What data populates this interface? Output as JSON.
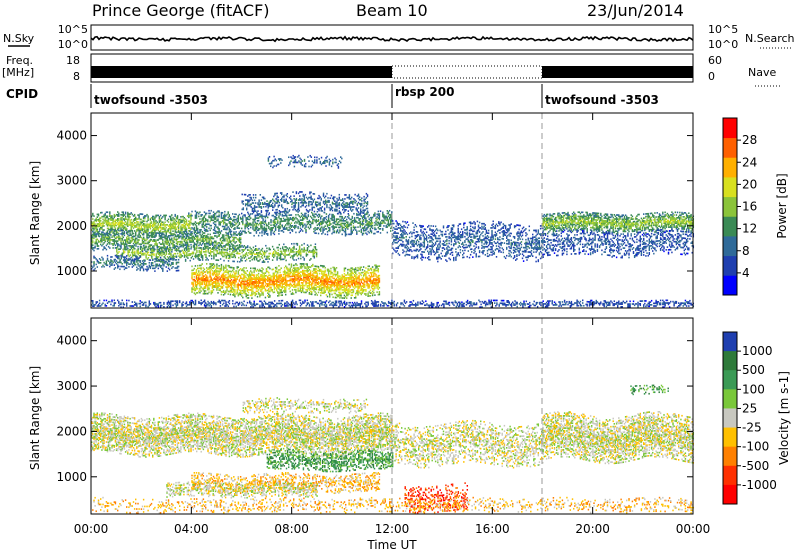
{
  "header": {
    "station": "Prince George (fitACF)",
    "beam": "Beam 10",
    "date": "23/Jun/2014"
  },
  "side_labels": {
    "nsky": "N.Sky",
    "freq": "Freq.",
    "freq_unit": "[MHz]",
    "cpid": "CPID",
    "nsearch": "N.Search",
    "nave": "Nave"
  },
  "top_panels": {
    "noise_ticks_left": [
      "10^5",
      "10^0"
    ],
    "noise_ticks_right": [
      "10^5",
      "10^0"
    ],
    "freq_ticks_left": [
      "18",
      "8"
    ],
    "freq_ticks_right": [
      "60",
      "0"
    ],
    "cpid_segments": [
      {
        "label": "twofsound -3503",
        "start_h": 0,
        "end_h": 12
      },
      {
        "label": "rbsp 200",
        "start_h": 12,
        "end_h": 18
      },
      {
        "label": "twofsound -3503",
        "start_h": 18,
        "end_h": 24
      }
    ]
  },
  "chart_data": [
    {
      "type": "heatmap",
      "name": "power",
      "xlabel": "Time UT",
      "ylabel": "Slant Range [km]",
      "xlim": [
        0,
        24
      ],
      "ylim": [
        180,
        4500
      ],
      "x_ticks": [
        "00:00",
        "04:00",
        "08:00",
        "12:00",
        "16:00",
        "20:00",
        "00:00"
      ],
      "y_ticks": [
        1000,
        2000,
        3000,
        4000
      ],
      "colorbar": {
        "label": "Power [dB]",
        "range": [
          0,
          32
        ],
        "ticks": [
          4,
          8,
          12,
          16,
          20,
          24,
          28
        ],
        "colors": [
          "#0000ff",
          "#1f3fb0",
          "#2f6a99",
          "#3a8a55",
          "#8bc43a",
          "#d8e020",
          "#ffb000",
          "#ff6000",
          "#ff0000"
        ]
      },
      "bands": [
        {
          "t0": 0.0,
          "t1": 4.0,
          "r": 2000,
          "w": 260,
          "v": 18,
          "d": 0.75
        },
        {
          "t0": 4.0,
          "t1": 12.0,
          "r": 2050,
          "w": 250,
          "v": 13,
          "d": 0.55
        },
        {
          "t0": 0.0,
          "t1": 6.0,
          "r": 1650,
          "w": 220,
          "v": 15,
          "d": 0.6
        },
        {
          "t0": 1.0,
          "t1": 9.0,
          "r": 1380,
          "w": 180,
          "v": 17,
          "d": 0.5
        },
        {
          "t0": 4.0,
          "t1": 11.5,
          "r": 760,
          "w": 330,
          "v": 26,
          "d": 0.8
        },
        {
          "t0": 0.0,
          "t1": 3.5,
          "r": 1150,
          "w": 150,
          "v": 10,
          "d": 0.45
        },
        {
          "t0": 6.0,
          "t1": 11.0,
          "r": 2500,
          "w": 220,
          "v": 9,
          "d": 0.45
        },
        {
          "t0": 12.0,
          "t1": 18.0,
          "r": 1650,
          "w": 400,
          "v": 8,
          "d": 0.45
        },
        {
          "t0": 18.0,
          "t1": 24.0,
          "r": 2050,
          "w": 220,
          "v": 17,
          "d": 0.8
        },
        {
          "t0": 18.0,
          "t1": 24.0,
          "r": 1600,
          "w": 280,
          "v": 7,
          "d": 0.45
        },
        {
          "t0": 7.0,
          "t1": 10.0,
          "r": 3400,
          "w": 120,
          "v": 9,
          "d": 0.3
        },
        {
          "t0": 0.0,
          "t1": 24.0,
          "r": 250,
          "w": 80,
          "v": 6,
          "d": 0.5
        }
      ]
    },
    {
      "type": "heatmap",
      "name": "velocity",
      "xlabel": "Time UT",
      "ylabel": "Slant Range [km]",
      "xlim": [
        0,
        24
      ],
      "ylim": [
        180,
        4500
      ],
      "x_ticks": [
        "00:00",
        "04:00",
        "08:00",
        "12:00",
        "16:00",
        "20:00",
        "00:00"
      ],
      "y_ticks": [
        1000,
        2000,
        3000,
        4000
      ],
      "colorbar": {
        "label": "Velocity [m s-1]",
        "tick_labels": [
          "1000",
          "500",
          "100",
          "25",
          "-25",
          "-100",
          "-500",
          "-1000"
        ],
        "colors": [
          "#1f3fb0",
          "#2e7a3a",
          "#3a9a55",
          "#7ac83a",
          "#c8c8c0",
          "#ffc000",
          "#ff8000",
          "#ff3000",
          "#ff0000"
        ]
      },
      "bands": [
        {
          "t0": 0.0,
          "t1": 12.0,
          "r": 1900,
          "w": 420,
          "v": 4,
          "d": 0.75
        },
        {
          "t0": 12.0,
          "t1": 18.0,
          "r": 1700,
          "w": 450,
          "v": 4,
          "d": 0.45
        },
        {
          "t0": 18.0,
          "t1": 24.0,
          "r": 1850,
          "w": 500,
          "v": 4,
          "d": 0.7
        },
        {
          "t0": 7.0,
          "t1": 12.0,
          "r": 1350,
          "w": 220,
          "v": 2,
          "d": 0.6
        },
        {
          "t0": 4.0,
          "t1": 11.5,
          "r": 850,
          "w": 200,
          "v": 5,
          "d": 0.45
        },
        {
          "t0": 3.0,
          "t1": 9.0,
          "r": 700,
          "w": 160,
          "v": 4,
          "d": 0.5
        },
        {
          "t0": 12.5,
          "t1": 15.0,
          "r": 500,
          "w": 300,
          "v": 7,
          "d": 0.35
        },
        {
          "t0": 0.0,
          "t1": 24.0,
          "r": 350,
          "w": 150,
          "v": 5,
          "d": 0.25
        },
        {
          "t0": 6.0,
          "t1": 11.0,
          "r": 2550,
          "w": 150,
          "v": 4,
          "d": 0.35
        },
        {
          "t0": 21.5,
          "t1": 23.0,
          "r": 2900,
          "w": 100,
          "v": 2,
          "d": 0.4
        }
      ]
    }
  ]
}
